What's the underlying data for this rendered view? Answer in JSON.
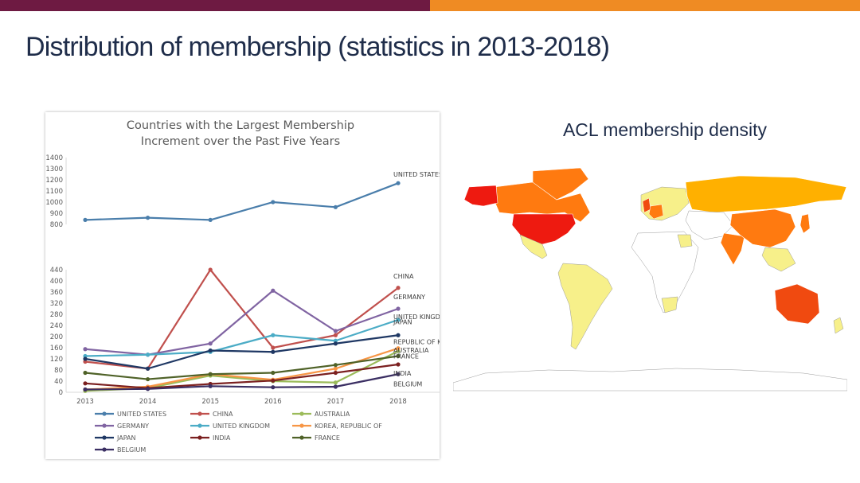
{
  "slide": {
    "title": "Distribution of membership (statistics in 2013-2018)",
    "accent_left": "#6e1a42",
    "accent_right": "#ef8b23"
  },
  "map": {
    "title": "ACL membership density",
    "color_scale": [
      "#ffffff",
      "#f7f08a",
      "#ffb000",
      "#ff7a10",
      "#f04a10",
      "#ee1a10"
    ]
  },
  "chart_data": {
    "type": "line",
    "title": "Countries with the Largest Membership Increment over the Past Five Years",
    "title_lines": [
      "Countries with the Largest Membership",
      "Increment over the Past Five Years"
    ],
    "x": [
      "2013",
      "2014",
      "2015",
      "2016",
      "2017",
      "2018"
    ],
    "upper_axis": {
      "ylim": [
        800,
        1400
      ],
      "ticks": [
        800,
        900,
        1000,
        1100,
        1200,
        1300,
        1400
      ]
    },
    "lower_axis": {
      "ylim": [
        0,
        440
      ],
      "ticks": [
        0,
        40,
        80,
        120,
        160,
        200,
        240,
        280,
        320,
        360,
        400,
        440
      ]
    },
    "grid": false,
    "legend_position": "bottom",
    "series": [
      {
        "name": "UNITED STATES",
        "end_label": "UNITED STATES",
        "axis": "upper",
        "color": "#4a7eab",
        "values": [
          840,
          860,
          840,
          1000,
          955,
          1170
        ]
      },
      {
        "name": "CHINA",
        "end_label": "CHINA",
        "axis": "lower",
        "color": "#c0504d",
        "values": [
          110,
          85,
          440,
          160,
          205,
          375
        ]
      },
      {
        "name": "AUSTRALIA",
        "end_label": "AUSTRALIA",
        "axis": "lower",
        "color": "#9bbb59",
        "values": [
          5,
          15,
          60,
          40,
          35,
          148
        ]
      },
      {
        "name": "GERMANY",
        "end_label": "GERMANY",
        "axis": "lower",
        "color": "#8064a2",
        "values": [
          155,
          135,
          175,
          365,
          220,
          300
        ]
      },
      {
        "name": "UNITED KINGDOM",
        "end_label": "UNITED KINGDOM",
        "axis": "lower",
        "color": "#4bacc6",
        "values": [
          130,
          135,
          145,
          205,
          185,
          260
        ]
      },
      {
        "name": "KOREA, REPUBLIC OF",
        "end_label": "REPUBLIC OF KOREA",
        "axis": "lower",
        "color": "#f79646",
        "values": [
          10,
          20,
          65,
          45,
          85,
          158
        ]
      },
      {
        "name": "JAPAN",
        "end_label": "JAPAN",
        "axis": "lower",
        "color": "#1f3864",
        "values": [
          120,
          85,
          150,
          145,
          175,
          205
        ]
      },
      {
        "name": "INDIA",
        "end_label": "INDIA",
        "axis": "lower",
        "color": "#7b2020",
        "values": [
          32,
          15,
          30,
          42,
          70,
          100
        ]
      },
      {
        "name": "FRANCE",
        "end_label": "FRANCE",
        "axis": "lower",
        "color": "#4f6228",
        "values": [
          70,
          47,
          65,
          70,
          98,
          130
        ]
      },
      {
        "name": "BELGIUM",
        "end_label": "BELGIUM",
        "axis": "lower",
        "color": "#3b2f63",
        "values": [
          10,
          12,
          22,
          18,
          20,
          65
        ]
      }
    ]
  }
}
